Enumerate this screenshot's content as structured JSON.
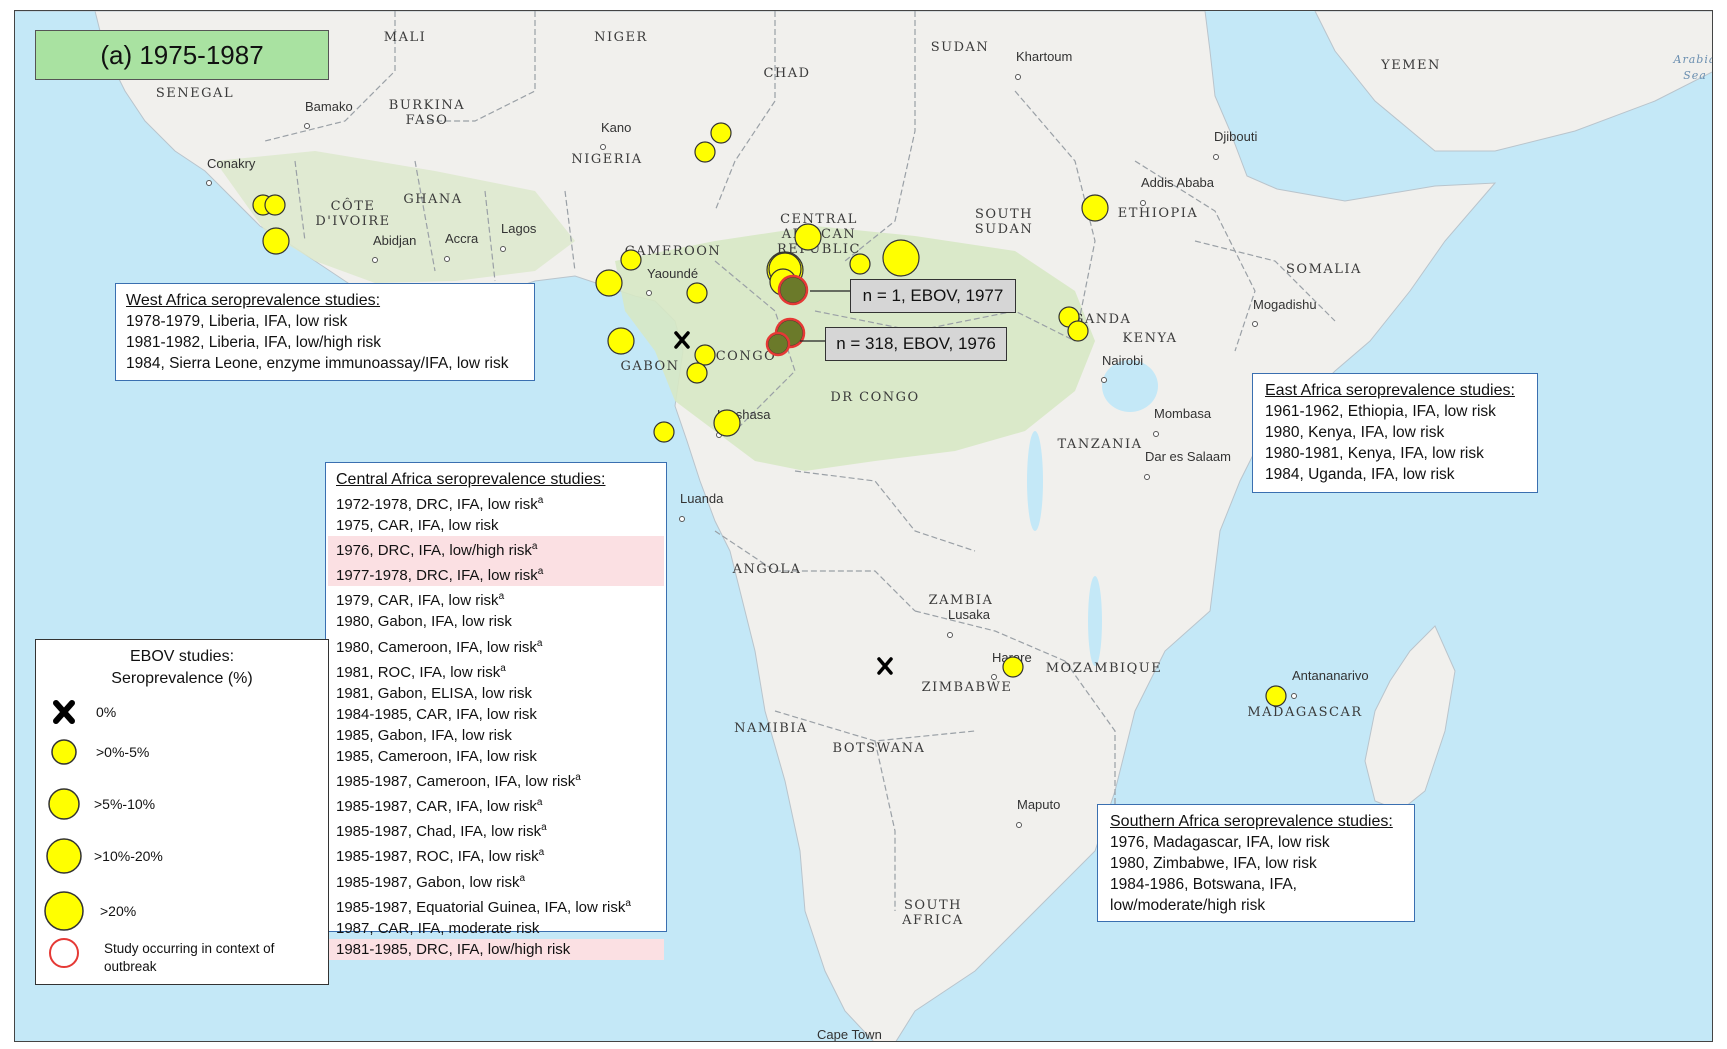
{
  "title": "(a) 1975-1987",
  "colors": {
    "ocean": "#c4e8f7",
    "land": "#f1f0ed",
    "forest": "#d7e8c4",
    "border": "#9aa0a6",
    "circle_fill": "#ffff00",
    "circle_stroke": "#333333",
    "outbreak_ring": "#e53935",
    "callout_bg": "#d6d6d6",
    "title_bg": "#a9e2a1",
    "highlight_row": "#fbe0e3"
  },
  "map_labels": {
    "countries": [
      "MALI",
      "NIGER",
      "SUDAN",
      "CHAD",
      "YEMEN",
      "SENEGAL",
      "BURKINA FASO",
      "NIGERIA",
      "CÔTE D'IVOIRE",
      "GHANA",
      "CENTRAL AFRICAN REPUBLIC",
      "SOUTH SUDAN",
      "ETHIOPIA",
      "CAMEROON",
      "GABON",
      "CONGO",
      "DR CONGO",
      "UGANDA",
      "KENYA",
      "SOMALIA",
      "TANZANIA",
      "ANGOLA",
      "ZAMBIA",
      "MOZAMBIQUE",
      "ZIMBABWE",
      "NAMIBIA",
      "BOTSWANA",
      "MADAGASCAR",
      "SOUTH AFRICA"
    ],
    "cities": [
      "Khartoum",
      "Bamako",
      "Kano",
      "Djibouti",
      "Conakry",
      "Addis Ababa",
      "Abidjan",
      "Accra",
      "Lagos",
      "Yaoundé",
      "Mogadishu",
      "Nairobi",
      "Kinshasa",
      "Mombasa",
      "Dar es Salaam",
      "Luanda",
      "Lusaka",
      "Harare",
      "Antananarivo",
      "Maputo",
      "Cape Town"
    ],
    "seas": [
      "Arabia",
      "Sea"
    ]
  },
  "callouts": [
    {
      "text": "n = 1, EBOV, 1977"
    },
    {
      "text": "n = 318, EBOV, 1976"
    }
  ],
  "west_panel": {
    "title": "West Africa seroprevalence  studies:",
    "rows": [
      {
        "text": "1978-1979, Liberia,  IFA, low risk"
      },
      {
        "text": "1981-1982, Liberia,  IFA, low/high risk"
      },
      {
        "text": "1984, Sierra Leone,  enzyme immunoassay/IFA,  low risk"
      }
    ]
  },
  "central_panel": {
    "title": "Central Africa seroprevalence  studies:",
    "rows": [
      {
        "text": "1972-1978, DRC, IFA, low risk",
        "sup": "a",
        "highlight": false
      },
      {
        "text": "1975, CAR, IFA, low risk",
        "sup": "",
        "highlight": false
      },
      {
        "text": "1976, DRC, IFA, low/high risk",
        "sup": "a",
        "highlight": true
      },
      {
        "text": "1977-1978, DRC, IFA, low risk",
        "sup": "a",
        "highlight": true
      },
      {
        "text": "1979, CAR, IFA, low risk",
        "sup": "a",
        "highlight": false
      },
      {
        "text": "1980, Gabon, IFA, low risk",
        "sup": "",
        "highlight": false
      },
      {
        "text": "1980, Cameroon,  IFA, low risk",
        "sup": "a",
        "highlight": false
      },
      {
        "text": "1981, ROC, IFA, low risk",
        "sup": "a",
        "highlight": false
      },
      {
        "text": "1981, Gabon, ELISA,  low risk",
        "sup": "",
        "highlight": false
      },
      {
        "text": "1984-1985, CAR, IFA, low risk",
        "sup": "",
        "highlight": false
      },
      {
        "text": "1985, Gabon, IFA, low risk",
        "sup": "",
        "highlight": false
      },
      {
        "text": "1985, Cameroon,  IFA, low risk",
        "sup": "",
        "highlight": false
      },
      {
        "text": "1985-1987, Cameroon,  IFA, low risk",
        "sup": "a",
        "highlight": false
      },
      {
        "text": "1985-1987, CAR, IFA, low risk",
        "sup": "a",
        "highlight": false
      },
      {
        "text": "1985-1987, Chad, IFA, low risk",
        "sup": "a",
        "highlight": false
      },
      {
        "text": "1985-1987, ROC, IFA, low risk",
        "sup": "a",
        "highlight": false
      },
      {
        "text": "1985-1987, Gabon, low risk",
        "sup": "a",
        "highlight": false
      },
      {
        "text": "1985-1987, Equatorial Guinea, IFA, low risk",
        "sup": "a",
        "highlight": false
      },
      {
        "text": "1987, CAR, IFA, moderate  risk",
        "sup": "",
        "highlight": false
      },
      {
        "text": "1981-1985, DRC, IFA, low/high risk",
        "sup": "",
        "highlight": true
      }
    ]
  },
  "east_panel": {
    "title": "East Africa seroprevalence  studies:",
    "rows": [
      {
        "text": "1961-1962, Ethiopia, IFA, low risk"
      },
      {
        "text": "1980, Kenya, IFA, low risk"
      },
      {
        "text": "1980-1981, Kenya, IFA, low risk"
      },
      {
        "text": "1984, Uganda, IFA, low risk"
      }
    ]
  },
  "southern_panel": {
    "title": "Southern Africa seroprevalence  studies:",
    "rows": [
      {
        "text": "1976, Madagascar,  IFA, low risk"
      },
      {
        "text": "1980, Zimbabwe, IFA, low risk"
      },
      {
        "text": "1984-1986, Botswana, IFA,"
      },
      {
        "text": "low/moderate/high  risk"
      }
    ]
  },
  "legend": {
    "title": "EBOV studies:",
    "subtitle": "Seroprevalence  (%)",
    "items": [
      {
        "label": "0%",
        "symbol": "cross"
      },
      {
        "label": ">0%-5%",
        "symbol": "circle",
        "size": 1
      },
      {
        "label": ">5%-10%",
        "symbol": "circle",
        "size": 2
      },
      {
        "label": ">10%-20%",
        "symbol": "circle",
        "size": 3
      },
      {
        "label": ">20%",
        "symbol": "circle",
        "size": 4
      },
      {
        "label": "Study occurring in context of outbreak",
        "symbol": "ring"
      }
    ]
  },
  "study_markers": [
    {
      "region": "Liberia",
      "class": ">0%-5%"
    },
    {
      "region": "Liberia",
      "class": ">0%-5%"
    },
    {
      "region": "Liberia",
      "class": ">5%-10%"
    },
    {
      "region": "Chad",
      "class": ">0%-5%"
    },
    {
      "region": "Chad",
      "class": ">0%-5%"
    },
    {
      "region": "Cameroon",
      "class": ">0%-5%"
    },
    {
      "region": "Cameroon",
      "class": ">5%-10%"
    },
    {
      "region": "Cameroon",
      "class": ">0%-5%"
    },
    {
      "region": "Equatorial Guinea",
      "class": ">5%-10%"
    },
    {
      "region": "Gabon",
      "class": ">0%-5%"
    },
    {
      "region": "Gabon",
      "class": ">0%-5%"
    },
    {
      "region": "Gabon",
      "class": ">0%-5%"
    },
    {
      "region": "Gabon",
      "class": "0%"
    },
    {
      "region": "Republic of Congo",
      "class": ">5%-10%"
    },
    {
      "region": "Central African Republic",
      "class": ">5%-10%"
    },
    {
      "region": "Central African Republic",
      "class": ">20%"
    },
    {
      "region": "Central African Republic",
      "class": ">0%-5%"
    },
    {
      "region": "Central African Republic",
      "class": ">20%"
    },
    {
      "region": "DRC",
      "class": ">10%-20%"
    },
    {
      "region": "DRC",
      "class": ">5%-10%"
    },
    {
      "region": "DRC",
      "class": ">5%-10%",
      "outbreak": true
    },
    {
      "region": "DRC",
      "class": ">5%-10%",
      "outbreak": true
    },
    {
      "region": "DRC",
      "class": ">0%-5%",
      "outbreak": true
    },
    {
      "region": "Ethiopia",
      "class": ">5%-10%"
    },
    {
      "region": "Uganda",
      "class": ">0%-5%"
    },
    {
      "region": "Kenya",
      "class": ">0%-5%"
    },
    {
      "region": "Zimbabwe",
      "class": ">0%-5%"
    },
    {
      "region": "Botswana",
      "class": "0%"
    },
    {
      "region": "Madagascar",
      "class": ">0%-5%"
    }
  ]
}
